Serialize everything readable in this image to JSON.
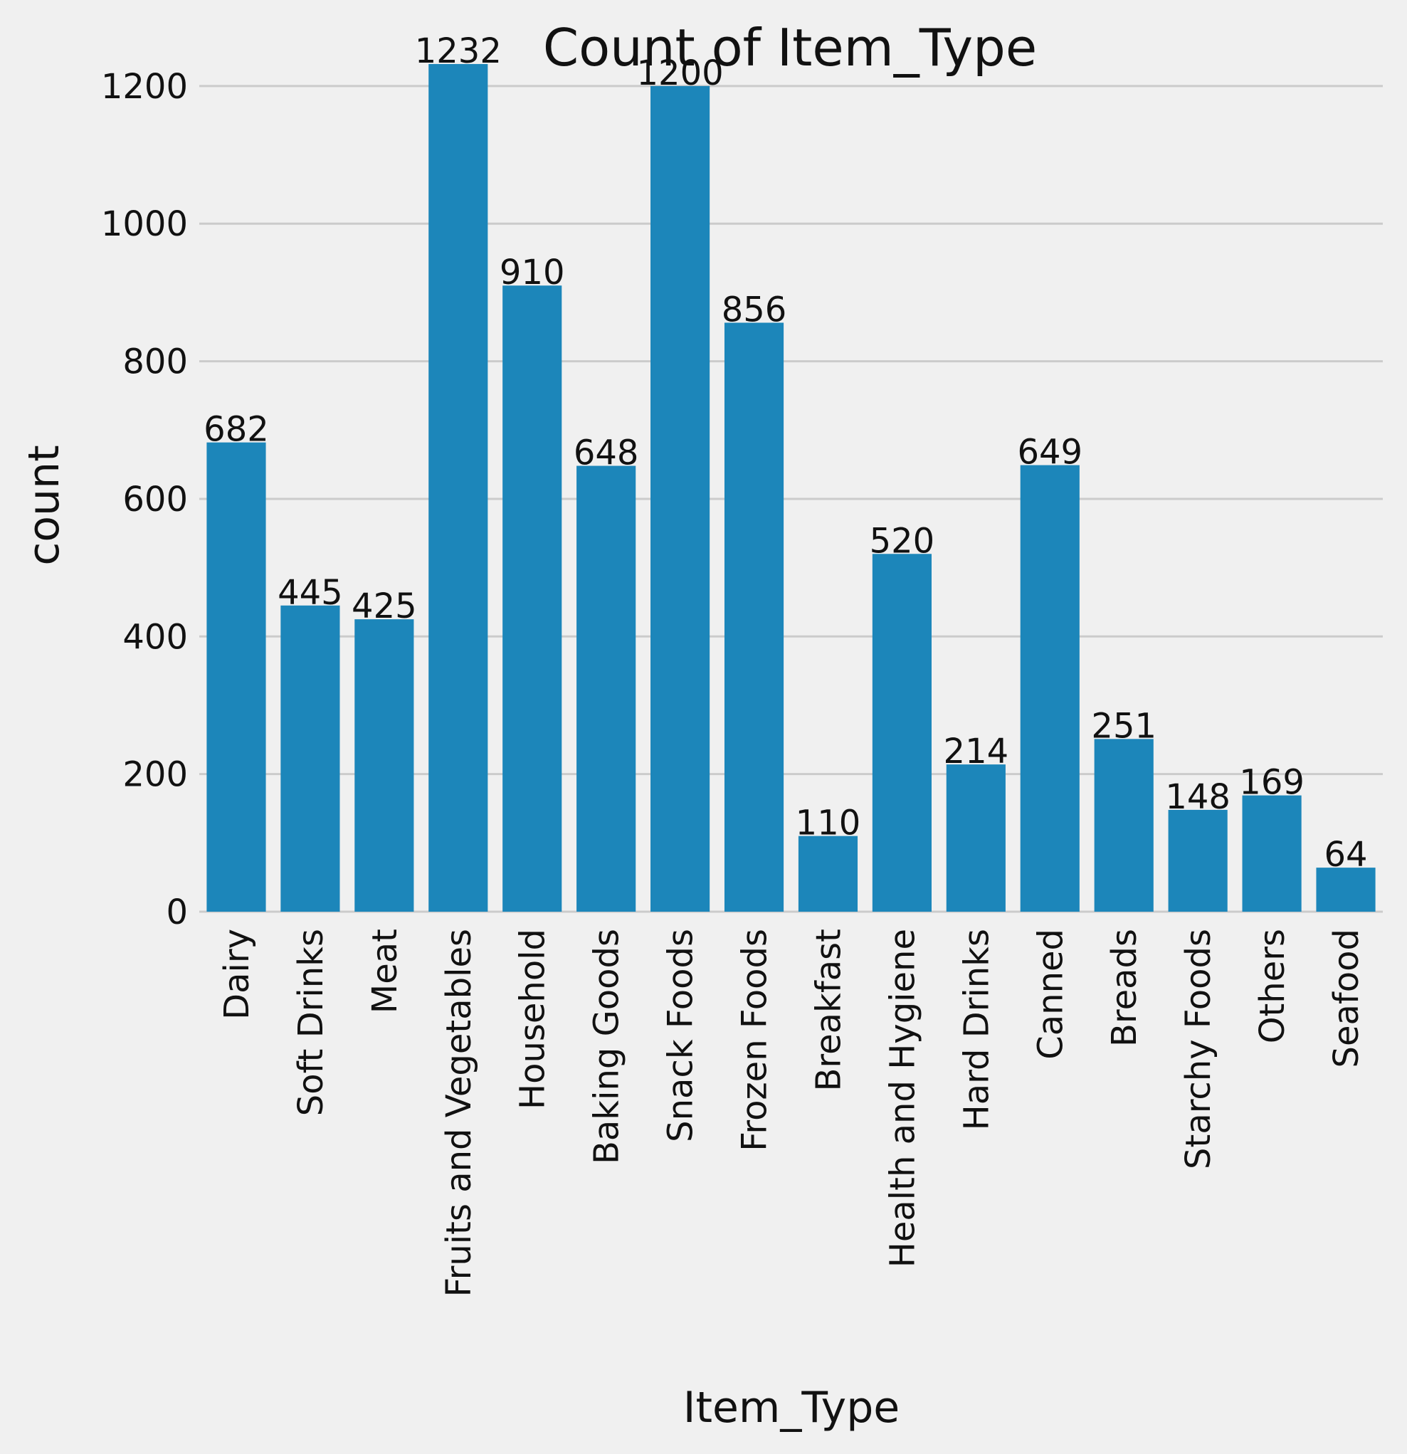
{
  "chart_data": {
    "type": "bar",
    "title": "Count of Item_Type",
    "xlabel": "Item_Type",
    "ylabel": "count",
    "categories": [
      "Dairy",
      "Soft Drinks",
      "Meat",
      "Fruits and Vegetables",
      "Household",
      "Baking Goods",
      "Snack Foods",
      "Frozen Foods",
      "Breakfast",
      "Health and Hygiene",
      "Hard Drinks",
      "Canned",
      "Breads",
      "Starchy Foods",
      "Others",
      "Seafood"
    ],
    "values": [
      682,
      445,
      425,
      1232,
      910,
      648,
      1200,
      856,
      110,
      520,
      214,
      649,
      251,
      148,
      169,
      64
    ],
    "data_labels": [
      "682",
      "445",
      "425",
      "1232",
      "910",
      "648",
      "1200",
      "856",
      "110",
      "520",
      "214",
      "649",
      "251",
      "148",
      "169",
      "64"
    ],
    "yticks": [
      0,
      200,
      400,
      600,
      800,
      1000,
      1200
    ],
    "ylim": [
      0,
      1294
    ],
    "grid": "horizontal",
    "colors": {
      "bar": "#1c86ba",
      "background": "#f0f0f0",
      "grid": "#cbcbcb"
    }
  }
}
